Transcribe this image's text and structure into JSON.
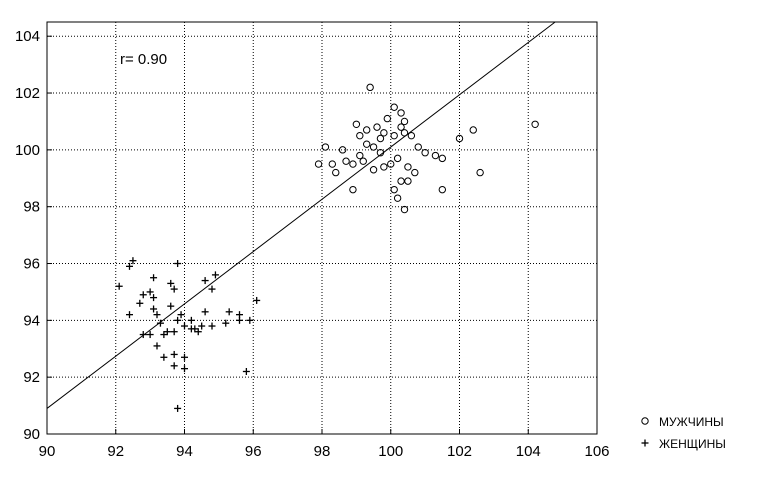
{
  "chart_data": {
    "type": "scatter",
    "xlim": [
      90,
      106
    ],
    "ylim": [
      90,
      104.5
    ],
    "x_ticks": [
      90,
      92,
      94,
      96,
      98,
      100,
      102,
      104,
      106
    ],
    "y_ticks": [
      90,
      92,
      94,
      96,
      98,
      100,
      102,
      104
    ],
    "grid": "dotted",
    "annotation": "r= 0.90",
    "legend_position": "bottom-right",
    "regression_line": {
      "slope": 0.92,
      "intercept": 8.1
    },
    "series": [
      {
        "name": "МУЖЧИНЫ",
        "marker": "circle",
        "points": [
          [
            99.4,
            102.2
          ],
          [
            99.0,
            100.9
          ],
          [
            99.3,
            100.7
          ],
          [
            99.6,
            100.8
          ],
          [
            99.9,
            101.1
          ],
          [
            100.1,
            101.5
          ],
          [
            100.3,
            101.3
          ],
          [
            100.4,
            101.0
          ],
          [
            98.6,
            100.0
          ],
          [
            98.1,
            100.1
          ],
          [
            99.1,
            100.5
          ],
          [
            99.3,
            100.2
          ],
          [
            99.5,
            100.1
          ],
          [
            99.7,
            100.4
          ],
          [
            99.8,
            100.6
          ],
          [
            100.1,
            100.5
          ],
          [
            100.3,
            100.8
          ],
          [
            100.4,
            100.6
          ],
          [
            100.6,
            100.5
          ],
          [
            100.8,
            100.1
          ],
          [
            101.0,
            99.9
          ],
          [
            101.3,
            99.8
          ],
          [
            102.0,
            100.4
          ],
          [
            102.4,
            100.7
          ],
          [
            104.2,
            100.9
          ],
          [
            97.9,
            99.5
          ],
          [
            98.3,
            99.5
          ],
          [
            98.4,
            99.2
          ],
          [
            98.7,
            99.6
          ],
          [
            98.9,
            99.5
          ],
          [
            99.1,
            99.8
          ],
          [
            99.2,
            99.6
          ],
          [
            99.5,
            99.3
          ],
          [
            99.7,
            99.9
          ],
          [
            99.8,
            99.4
          ],
          [
            100.0,
            99.5
          ],
          [
            100.2,
            99.7
          ],
          [
            100.5,
            99.4
          ],
          [
            100.7,
            99.2
          ],
          [
            100.3,
            98.9
          ],
          [
            100.5,
            98.9
          ],
          [
            100.1,
            98.6
          ],
          [
            100.2,
            98.3
          ],
          [
            98.9,
            98.6
          ],
          [
            101.5,
            98.6
          ],
          [
            100.4,
            97.9
          ],
          [
            101.5,
            99.7
          ],
          [
            102.6,
            99.2
          ]
        ]
      },
      {
        "name": "ЖЕНЩИНЫ",
        "marker": "plus",
        "points": [
          [
            92.4,
            95.9
          ],
          [
            92.5,
            96.1
          ],
          [
            93.8,
            96.0
          ],
          [
            92.1,
            95.2
          ],
          [
            93.1,
            95.5
          ],
          [
            93.6,
            95.3
          ],
          [
            94.6,
            95.4
          ],
          [
            94.9,
            95.6
          ],
          [
            92.8,
            94.9
          ],
          [
            93.0,
            95.0
          ],
          [
            93.1,
            94.8
          ],
          [
            93.7,
            95.1
          ],
          [
            94.8,
            95.1
          ],
          [
            92.7,
            94.6
          ],
          [
            93.1,
            94.4
          ],
          [
            93.6,
            94.5
          ],
          [
            93.9,
            94.2
          ],
          [
            94.2,
            94.0
          ],
          [
            94.6,
            94.3
          ],
          [
            95.3,
            94.3
          ],
          [
            95.6,
            94.2
          ],
          [
            96.1,
            94.7
          ],
          [
            92.4,
            94.2
          ],
          [
            93.2,
            94.2
          ],
          [
            93.3,
            93.9
          ],
          [
            93.5,
            93.6
          ],
          [
            93.8,
            94.0
          ],
          [
            94.0,
            93.8
          ],
          [
            94.3,
            93.7
          ],
          [
            94.5,
            93.8
          ],
          [
            94.8,
            93.8
          ],
          [
            95.2,
            93.9
          ],
          [
            95.6,
            94.0
          ],
          [
            95.9,
            94.0
          ],
          [
            92.8,
            93.5
          ],
          [
            93.0,
            93.5
          ],
          [
            93.2,
            93.1
          ],
          [
            93.4,
            93.5
          ],
          [
            93.7,
            93.6
          ],
          [
            94.2,
            93.7
          ],
          [
            94.4,
            93.6
          ],
          [
            93.4,
            92.7
          ],
          [
            93.7,
            92.8
          ],
          [
            94.0,
            92.7
          ],
          [
            93.7,
            92.4
          ],
          [
            94.0,
            92.3
          ],
          [
            95.8,
            92.2
          ],
          [
            93.8,
            90.9
          ]
        ]
      }
    ]
  }
}
